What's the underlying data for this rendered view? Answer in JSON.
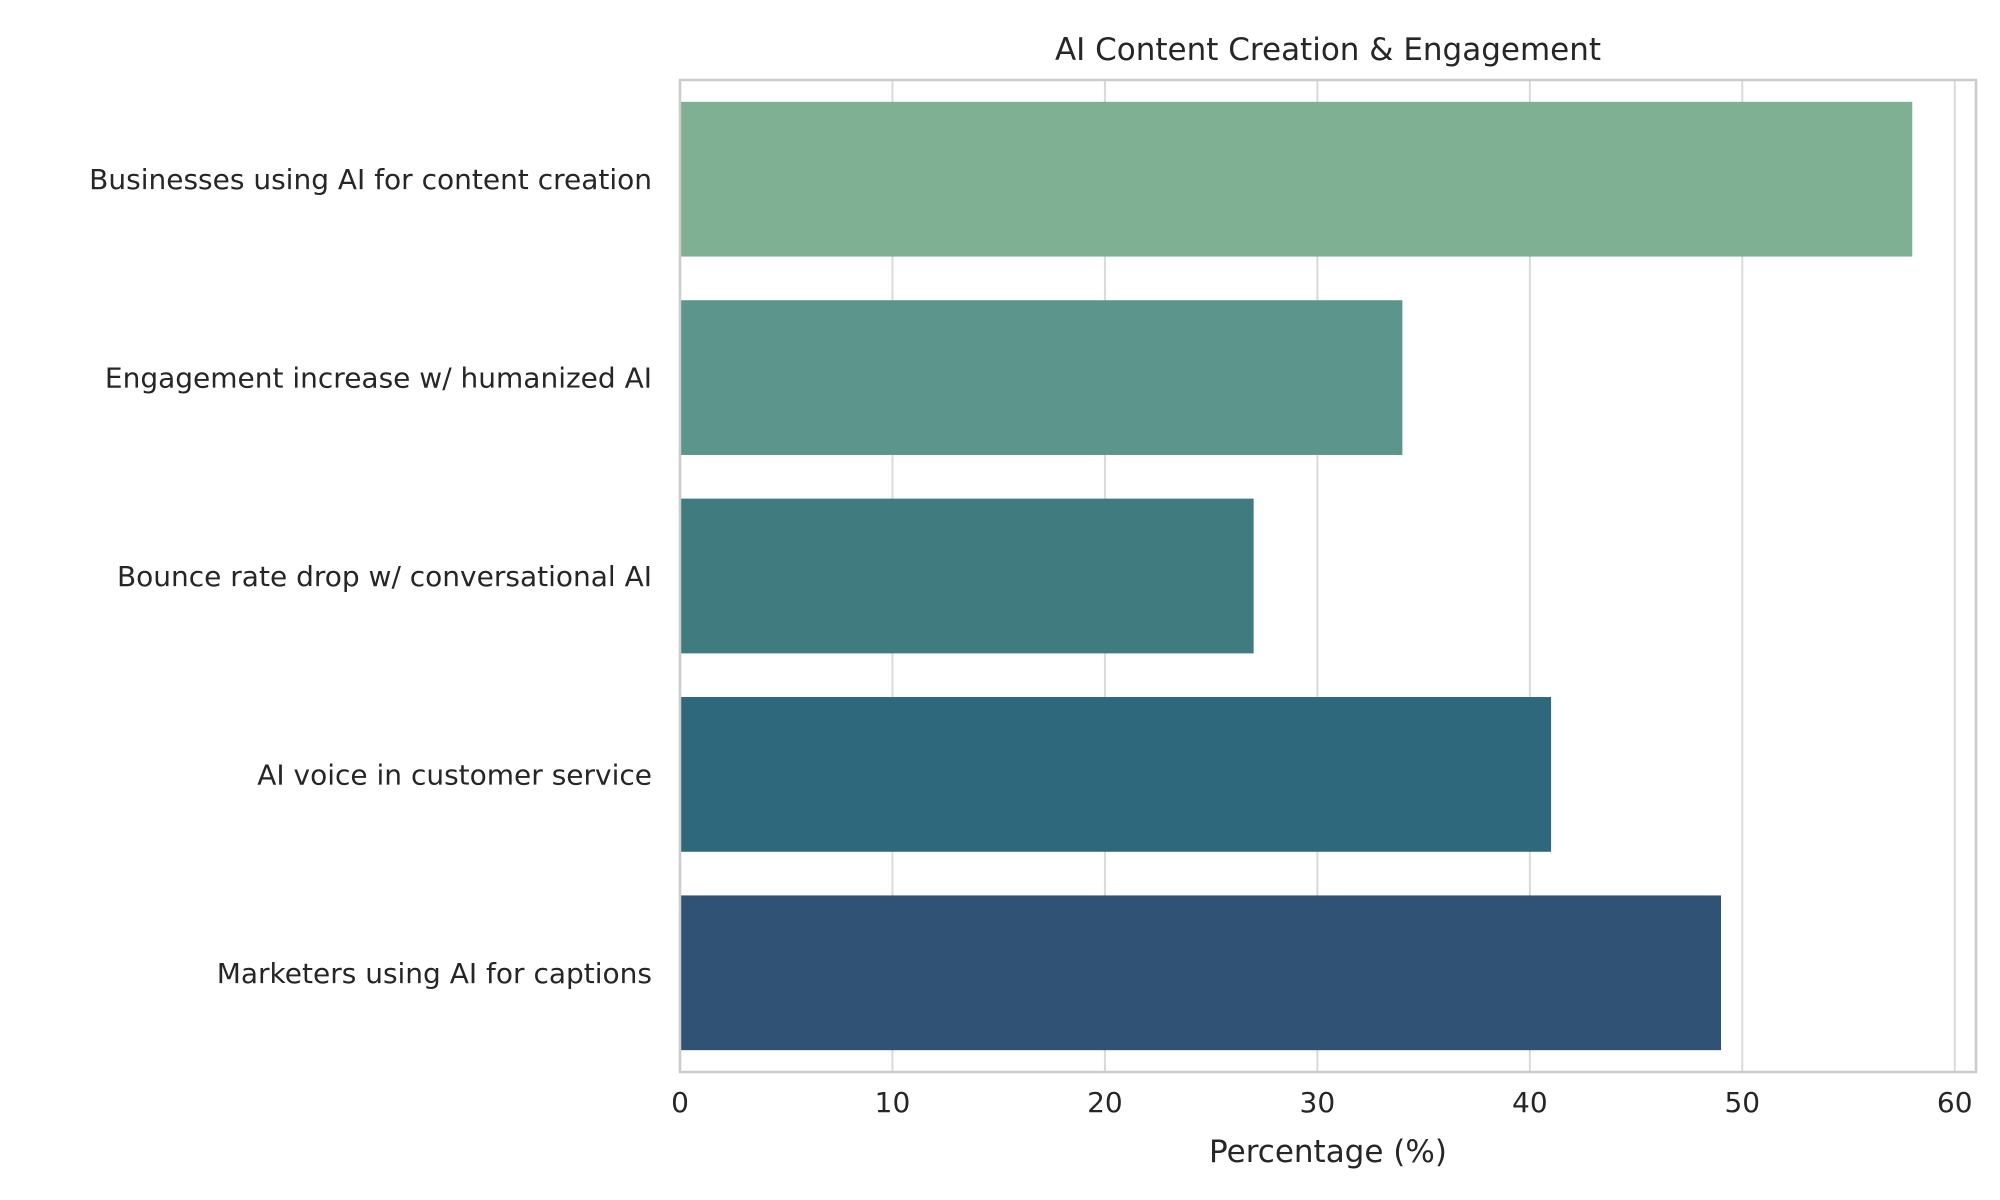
{
  "chart_data": {
    "type": "bar",
    "orientation": "horizontal",
    "title": "AI Content Creation & Engagement",
    "xlabel": "Percentage (%)",
    "ylabel": "",
    "xlim": [
      0,
      61
    ],
    "xticks": [
      0,
      10,
      20,
      30,
      40,
      50,
      60
    ],
    "grid": true,
    "categories": [
      "Businesses using AI for content creation",
      "Engagement increase w/ humanized AI",
      "Bounce rate drop w/ conversational AI",
      "AI voice in customer service",
      "Marketers using AI for captions"
    ],
    "values": [
      58,
      34,
      27,
      41,
      49
    ],
    "colors": [
      "#7fb093",
      "#5c958b",
      "#3f7b7f",
      "#2e687c",
      "#305275"
    ]
  }
}
